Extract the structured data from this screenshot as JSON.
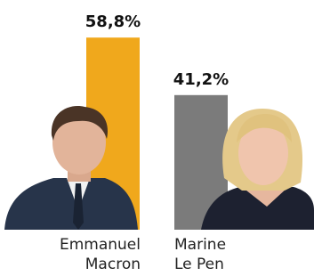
{
  "chart_data": {
    "type": "bar",
    "categories": [
      "Emmanuel Macron",
      "Marine Le Pen"
    ],
    "values": [
      58.8,
      41.2
    ],
    "value_labels": [
      "58,8%",
      "41,2%"
    ],
    "colors": [
      "#f0a81c",
      "#7b7b7b"
    ]
  }
}
